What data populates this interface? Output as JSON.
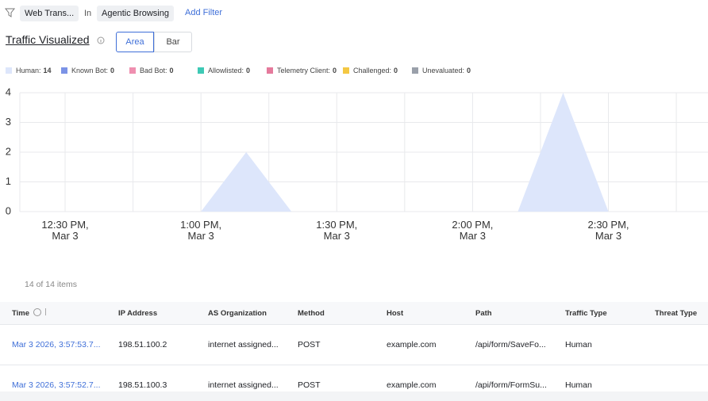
{
  "filter_bar": {
    "field": "Web Trans...",
    "operator": "In",
    "value": "Agentic Browsing",
    "add_filter": "Add Filter"
  },
  "section_title": "Traffic Visualized",
  "view_toggle": {
    "options": [
      "Area",
      "Bar"
    ],
    "selected": "Area"
  },
  "chart_data": {
    "type": "area",
    "x": [
      "12:20",
      "12:30",
      "12:40",
      "12:50",
      "13:00",
      "13:10",
      "13:20",
      "13:30",
      "13:40",
      "13:50",
      "14:00",
      "14:10",
      "14:20",
      "14:30",
      "14:40",
      "14:50"
    ],
    "series": [
      {
        "name": "Human:",
        "total": 14,
        "color": "#dde6fb",
        "values": [
          0,
          0,
          0,
          0,
          0,
          2,
          0,
          0,
          0,
          0,
          0,
          0,
          4,
          0,
          0,
          0
        ]
      },
      {
        "name": "Known Bot:",
        "total": 0,
        "color": "#7b93e6"
      },
      {
        "name": "Bad Bot:",
        "total": 0,
        "color": "#ef8fb0"
      },
      {
        "name": "Allowlisted:",
        "total": 0,
        "color": "#3ec9b5"
      },
      {
        "name": "Telemetry Client:",
        "total": 0,
        "color": "#e57a9c"
      },
      {
        "name": "Challenged:",
        "total": 0,
        "color": "#f4c843"
      },
      {
        "name": "Unevaluated:",
        "total": 0,
        "color": "#9aa0aa"
      }
    ],
    "xlim": [
      "12:20",
      "14:52"
    ],
    "xticks": [
      {
        "value": "12:30",
        "label": "12:30 PM, Mar 3"
      },
      {
        "value": "13:00",
        "label": "1:00 PM, Mar 3"
      },
      {
        "value": "13:30",
        "label": "1:30 PM, Mar 3"
      },
      {
        "value": "14:00",
        "label": "2:00 PM, Mar 3"
      },
      {
        "value": "14:30",
        "label": "2:30 PM, Mar 3"
      }
    ],
    "xgrid": [
      "12:20",
      "12:45",
      "13:15",
      "13:45",
      "14:15",
      "14:45"
    ],
    "ylim": [
      0,
      4
    ],
    "yticks": [
      0,
      1,
      2,
      3,
      4
    ],
    "grid": true
  },
  "table": {
    "count": "14 of 14 items",
    "columns": [
      "Time",
      "IP Address",
      "AS Organization",
      "Method",
      "Host",
      "Path",
      "Traffic Type",
      "Threat Type"
    ],
    "rows": [
      [
        "Mar 3 2026, 3:57:53.7...",
        "198.51.100.2",
        "internet assigned...",
        "POST",
        "example.com",
        "/api/form/SaveFo...",
        "Human",
        ""
      ],
      [
        "Mar 3 2026, 3:57:52.7...",
        "198.51.100.3",
        "internet assigned...",
        "POST",
        "example.com",
        "/api/form/FormSu...",
        "Human",
        ""
      ]
    ]
  }
}
